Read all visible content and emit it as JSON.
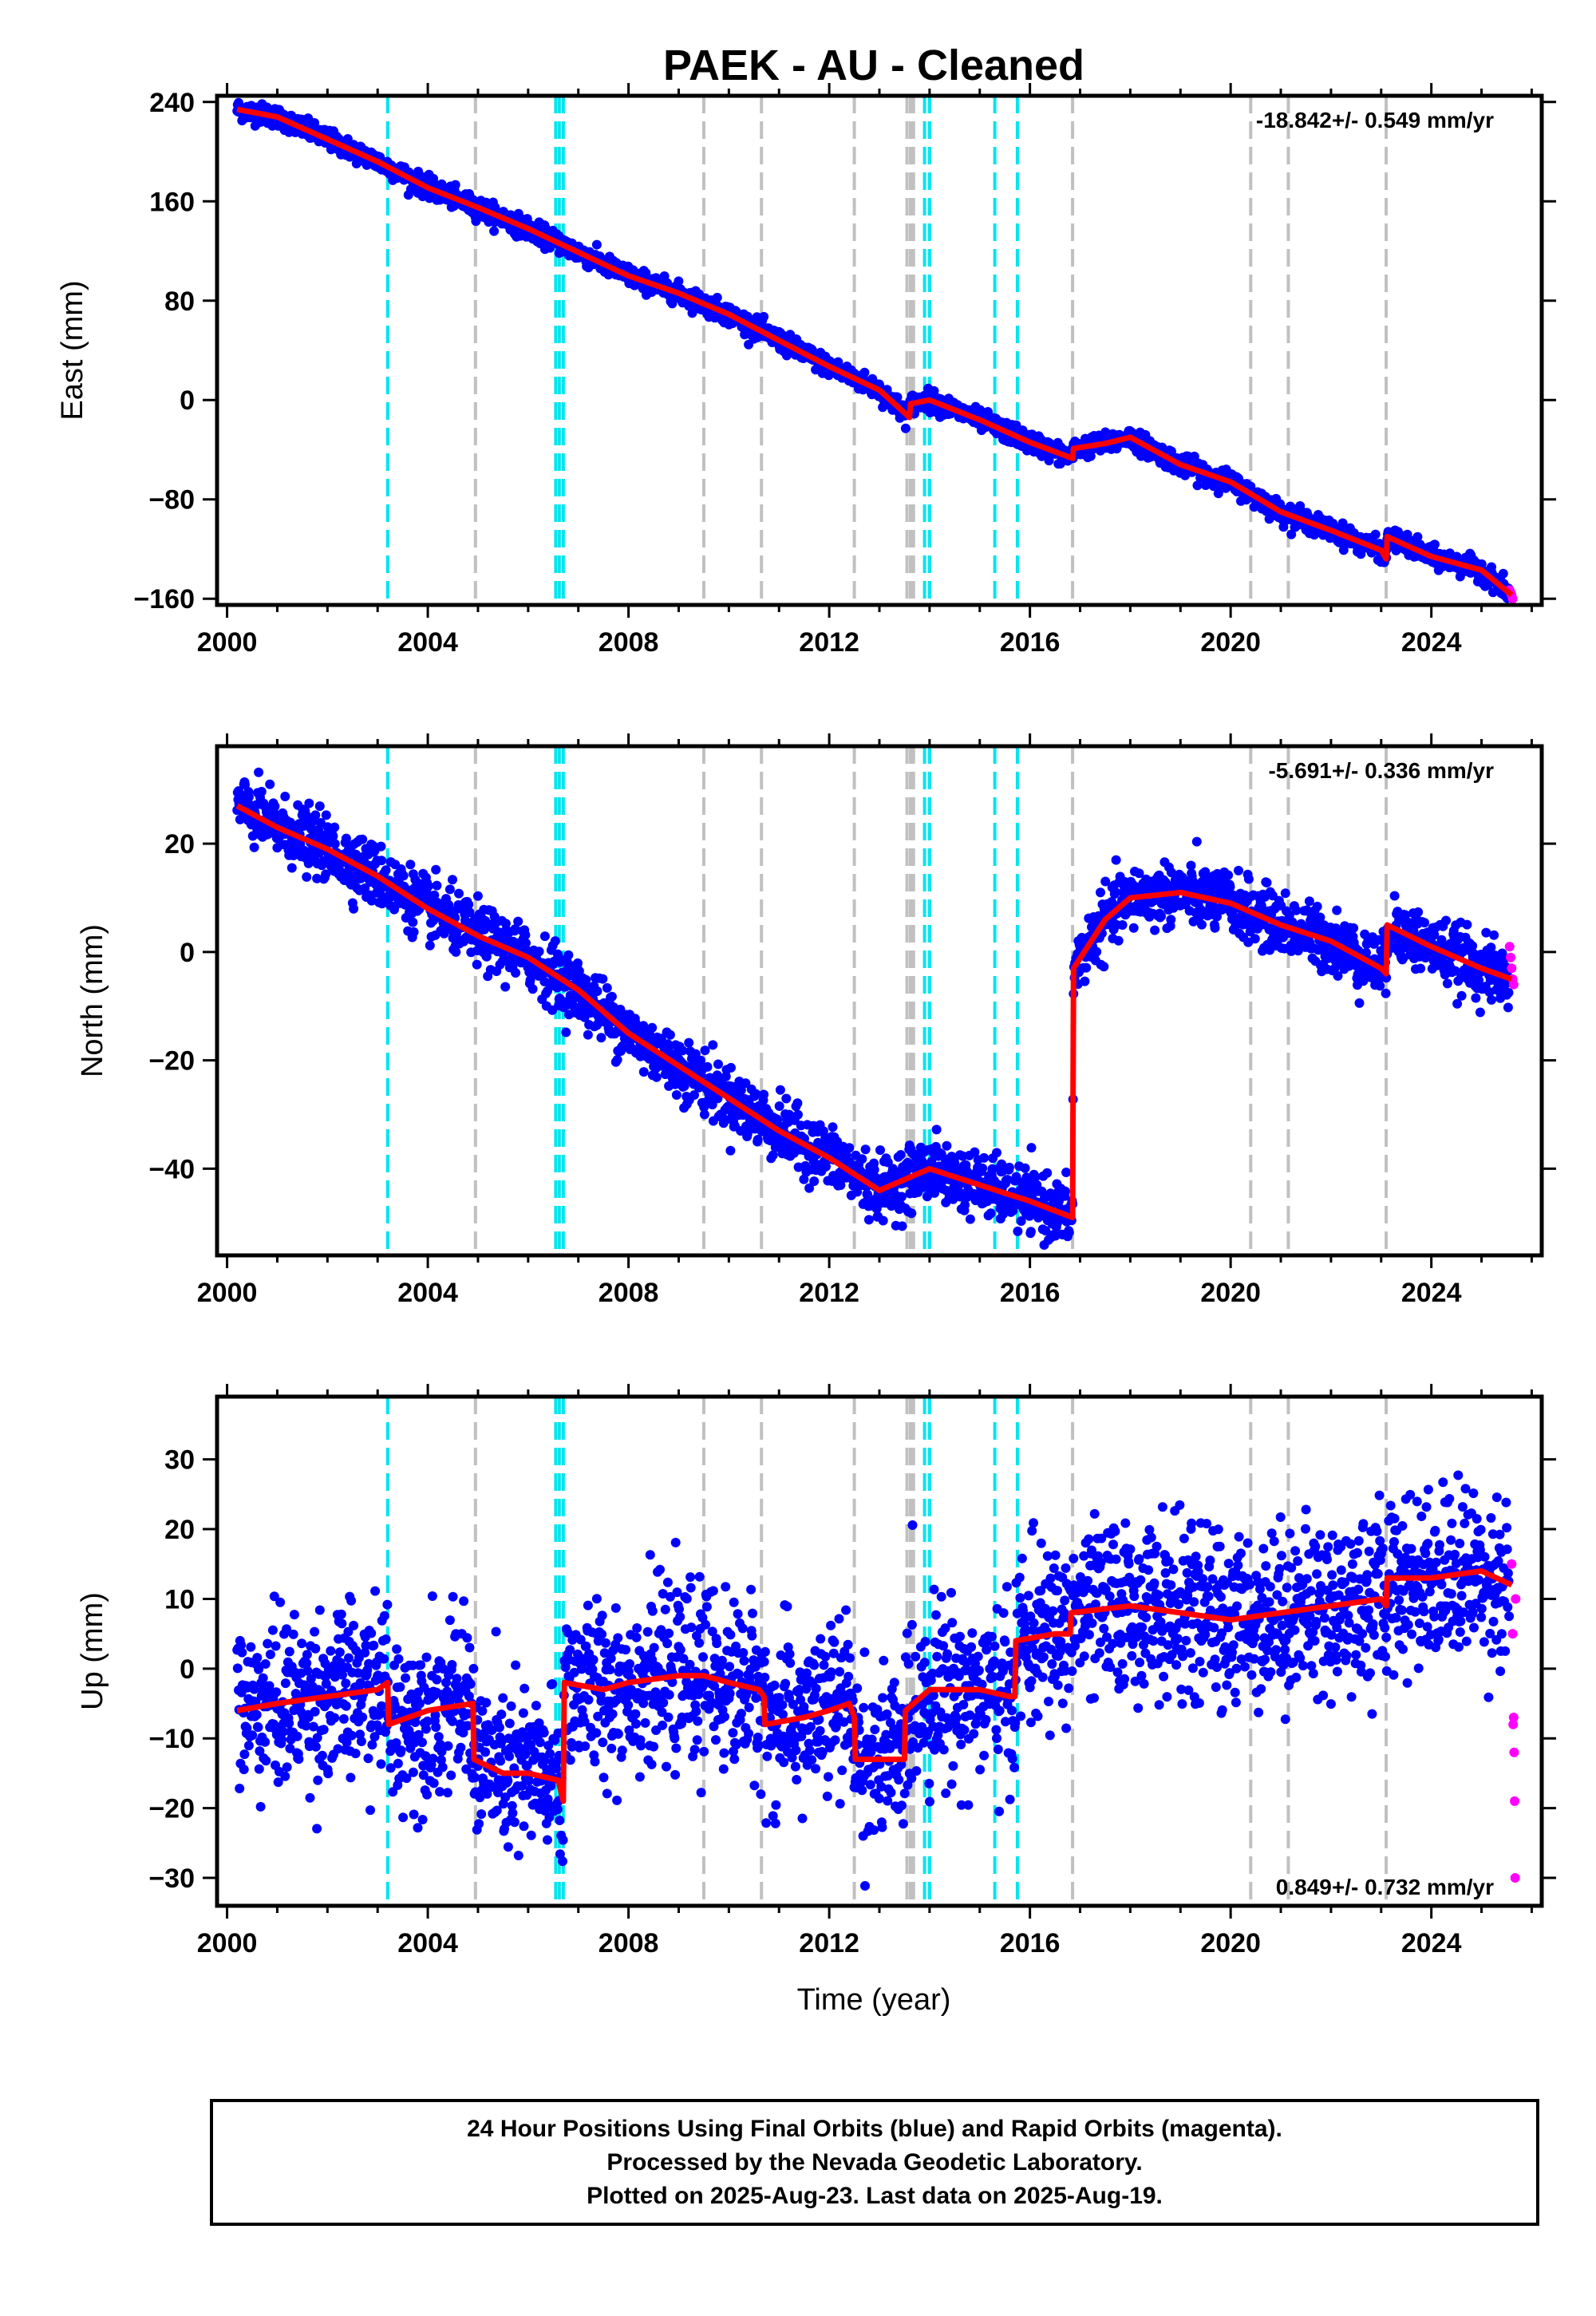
{
  "title": "PAEK  - AU - Cleaned",
  "x_label": "Time (year)",
  "footer": {
    "lines": [
      "24 Hour Positions Using Final Orbits (blue) and Rapid Orbits (magenta).",
      "Processed by the Nevada Geodetic Laboratory.",
      "Plotted on 2025-Aug-23. Last data on 2025-Aug-19."
    ]
  },
  "colors": {
    "final_orbits": "#0000ff",
    "rapid_orbits": "#ff00ff",
    "model": "#ff0000",
    "equipment_change": "#00e5ee",
    "earthquake": "#c0c0c0"
  },
  "chart_data": [
    {
      "type": "scatter",
      "component": "East",
      "ylabel": "East (mm)",
      "rate_text": "-18.842+/- 0.549 mm/yr",
      "rate_position": "top-right",
      "xlim": [
        1999.8,
        2026.2
      ],
      "ylim": [
        -165,
        245
      ],
      "x_ticks": [
        2000,
        2004,
        2008,
        2012,
        2016,
        2020,
        2024
      ],
      "y_ticks": [
        240,
        160,
        80,
        0,
        -80,
        -160
      ],
      "y_tick_labels": [
        "240",
        "160",
        "80",
        "0",
        "−80",
        "−160"
      ],
      "model_x": [
        2000.2,
        2001.0,
        2002.0,
        2003.0,
        2004.0,
        2005.0,
        2006.0,
        2007.0,
        2008.0,
        2009.0,
        2010.0,
        2011.0,
        2012.0,
        2013.0,
        2013.6,
        2013.62,
        2014.0,
        2015.0,
        2016.0,
        2016.85,
        2016.87,
        2017.5,
        2018.0,
        2019.0,
        2020.0,
        2021.0,
        2022.0,
        2023.0,
        2023.1,
        2023.12,
        2024.0,
        2025.0,
        2025.6
      ],
      "model_y": [
        234,
        228,
        210,
        192,
        171,
        155,
        138,
        119,
        100,
        86,
        69,
        48,
        27,
        8,
        -14,
        -3,
        0,
        -16,
        -34,
        -47,
        -39,
        -35,
        -30,
        -52,
        -66,
        -90,
        -105,
        -121,
        -128,
        -110,
        -126,
        -137,
        -157
      ],
      "final_range": [
        2000.2,
        2025.55
      ],
      "rapid_x": [
        2025.56,
        2025.58,
        2025.6,
        2025.62
      ],
      "rapid_y": [
        -153,
        -155,
        -157,
        -160
      ],
      "noise_mm": 4
    },
    {
      "type": "scatter",
      "component": "North",
      "ylabel": "North (mm)",
      "rate_text": "-5.691+/- 0.336 mm/yr",
      "rate_position": "top-right",
      "xlim": [
        1999.8,
        2026.2
      ],
      "ylim": [
        -56,
        38
      ],
      "x_ticks": [
        2000,
        2004,
        2008,
        2012,
        2016,
        2020,
        2024
      ],
      "y_ticks": [
        20,
        0,
        -20,
        -40
      ],
      "y_tick_labels": [
        "20",
        "0",
        "−20",
        "−40"
      ],
      "model_x": [
        2000.2,
        2001.0,
        2002.0,
        2003.0,
        2004.0,
        2005.0,
        2006.0,
        2007.0,
        2008.0,
        2009.0,
        2010.0,
        2011.0,
        2012.0,
        2013.0,
        2014.0,
        2015.0,
        2016.0,
        2016.85,
        2016.87,
        2017.5,
        2018.0,
        2019.0,
        2020.0,
        2021.0,
        2022.0,
        2023.0,
        2023.1,
        2023.12,
        2024.0,
        2025.0,
        2025.6
      ],
      "model_y": [
        27,
        23,
        19,
        14,
        8,
        3,
        -1,
        -7,
        -15,
        -21,
        -27,
        -33,
        -38,
        -44,
        -40,
        -43,
        -46,
        -49,
        -3,
        6,
        10,
        11,
        9,
        5,
        2,
        -3,
        -4,
        5,
        1,
        -3,
        -5
      ],
      "final_range": [
        2000.2,
        2025.55
      ],
      "rapid_x": [
        2025.56,
        2025.58,
        2025.6,
        2025.62,
        2025.64
      ],
      "rapid_y": [
        1,
        -1,
        -3,
        -5,
        -6
      ],
      "noise_mm": 2.8
    },
    {
      "type": "scatter",
      "component": "Up",
      "ylabel": "Up (mm)",
      "rate_text": "0.849+/- 0.732 mm/yr",
      "rate_position": "bottom-right",
      "xlim": [
        1999.8,
        2026.2
      ],
      "ylim": [
        -34,
        39
      ],
      "x_ticks": [
        2000,
        2004,
        2008,
        2012,
        2016,
        2020,
        2024
      ],
      "x_tick_labels_shown": true,
      "y_ticks": [
        30,
        20,
        10,
        0,
        -10,
        -20,
        -30
      ],
      "y_tick_labels": [
        "30",
        "20",
        "10",
        "0",
        "−10",
        "−20",
        "−30"
      ],
      "model_x": [
        2000.2,
        2001.0,
        2002.0,
        2003.0,
        2003.2,
        2003.22,
        2004.0,
        2004.9,
        2004.92,
        2005.5,
        2006.0,
        2006.6,
        2006.7,
        2006.72,
        2007.5,
        2008.0,
        2009.0,
        2009.5,
        2010.0,
        2010.6,
        2010.7,
        2010.72,
        2011.5,
        2012.0,
        2012.4,
        2012.5,
        2012.52,
        2013.0,
        2013.5,
        2013.52,
        2014.0,
        2015.0,
        2015.6,
        2015.7,
        2015.72,
        2016.5,
        2016.8,
        2016.82,
        2018.0,
        2019.0,
        2020.0,
        2021.0,
        2022.0,
        2023.0,
        2023.1,
        2023.12,
        2024.0,
        2025.0,
        2025.6
      ],
      "model_y": [
        -6,
        -5,
        -4,
        -3,
        -2,
        -8,
        -6,
        -5,
        -13,
        -15,
        -15,
        -16,
        -19,
        -2,
        -3,
        -2,
        -1,
        -1,
        -2,
        -3,
        -4,
        -8,
        -7,
        -6,
        -5,
        -7,
        -13,
        -13,
        -13,
        -6,
        -3,
        -3,
        -4,
        -4,
        4,
        5,
        5,
        8,
        9,
        8,
        7,
        8,
        9,
        10,
        9,
        13,
        13,
        14,
        12
      ],
      "final_range": [
        2000.2,
        2025.55
      ],
      "rapid_x": [
        2025.6,
        2025.62,
        2025.63,
        2025.64,
        2025.65,
        2025.66,
        2025.67,
        2025.68
      ],
      "rapid_y": [
        15,
        5,
        -8,
        -7,
        -12,
        -19,
        -30,
        10
      ],
      "noise_mm": 6
    }
  ],
  "event_lines": {
    "equipment_change_years": [
      2003.2,
      2006.55,
      2006.62,
      2006.7,
      2013.9,
      2014.0,
      2015.3,
      2015.75
    ],
    "earthquake_years": [
      2004.95,
      2009.5,
      2010.65,
      2012.5,
      2013.55,
      2013.62,
      2013.68,
      2016.85,
      2020.4,
      2021.15,
      2023.1
    ]
  }
}
